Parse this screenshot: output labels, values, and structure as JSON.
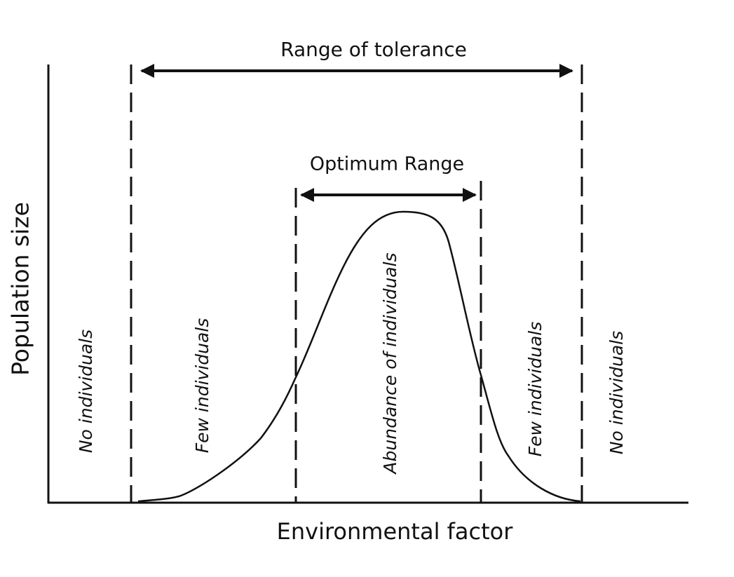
{
  "range_of_tolerance": "Range of tolerance",
  "optimum_range": "Optimum Range",
  "y_axis_label": "Population size",
  "x_axis_label": "Environmental factor",
  "zones": [
    "No individuals",
    "Few individuals",
    "Abundance of individuals",
    "Few individuals",
    "No individuals"
  ]
}
